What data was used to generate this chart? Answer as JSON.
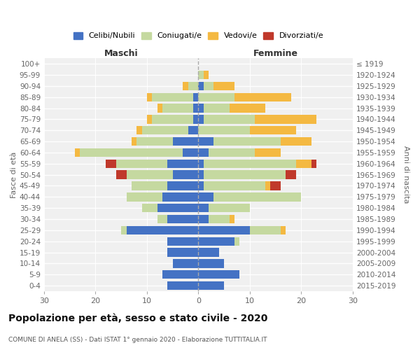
{
  "age_groups": [
    "0-4",
    "5-9",
    "10-14",
    "15-19",
    "20-24",
    "25-29",
    "30-34",
    "35-39",
    "40-44",
    "45-49",
    "50-54",
    "55-59",
    "60-64",
    "65-69",
    "70-74",
    "75-79",
    "80-84",
    "85-89",
    "90-94",
    "95-99",
    "100+"
  ],
  "birth_years": [
    "2015-2019",
    "2010-2014",
    "2005-2009",
    "2000-2004",
    "1995-1999",
    "1990-1994",
    "1985-1989",
    "1980-1984",
    "1975-1979",
    "1970-1974",
    "1965-1969",
    "1960-1964",
    "1955-1959",
    "1950-1954",
    "1945-1949",
    "1940-1944",
    "1935-1939",
    "1930-1934",
    "1925-1929",
    "1920-1924",
    "≤ 1919"
  ],
  "colors": {
    "celibe": "#4472C4",
    "coniugato": "#C5D9A0",
    "vedovo": "#F4B942",
    "divorziato": "#C0392B"
  },
  "male": {
    "celibe": [
      6,
      7,
      5,
      6,
      6,
      14,
      6,
      8,
      7,
      6,
      5,
      6,
      3,
      5,
      2,
      1,
      1,
      1,
      0,
      0,
      0
    ],
    "coniugato": [
      0,
      0,
      0,
      0,
      0,
      1,
      2,
      3,
      7,
      7,
      9,
      10,
      20,
      7,
      9,
      8,
      6,
      8,
      2,
      0,
      0
    ],
    "vedovo": [
      0,
      0,
      0,
      0,
      0,
      0,
      0,
      0,
      0,
      0,
      0,
      0,
      1,
      1,
      1,
      1,
      1,
      1,
      1,
      0,
      0
    ],
    "divorziato": [
      0,
      0,
      0,
      0,
      0,
      0,
      0,
      0,
      0,
      0,
      2,
      2,
      0,
      0,
      0,
      0,
      0,
      0,
      0,
      0,
      0
    ]
  },
  "female": {
    "celibe": [
      5,
      8,
      5,
      4,
      7,
      10,
      2,
      2,
      3,
      1,
      1,
      1,
      2,
      3,
      0,
      1,
      1,
      0,
      1,
      0,
      0
    ],
    "coniugato": [
      0,
      0,
      0,
      0,
      1,
      6,
      4,
      8,
      17,
      12,
      16,
      18,
      9,
      13,
      10,
      10,
      5,
      7,
      2,
      1,
      0
    ],
    "vedovo": [
      0,
      0,
      0,
      0,
      0,
      1,
      1,
      0,
      0,
      1,
      0,
      3,
      5,
      6,
      9,
      12,
      7,
      11,
      4,
      1,
      0
    ],
    "divorziato": [
      0,
      0,
      0,
      0,
      0,
      0,
      0,
      0,
      0,
      2,
      2,
      1,
      0,
      0,
      0,
      0,
      0,
      0,
      0,
      0,
      0
    ]
  },
  "xlim": 30,
  "title": "Popolazione per età, sesso e stato civile - 2020",
  "subtitle": "COMUNE DI ANELA (SS) - Dati ISTAT 1° gennaio 2020 - Elaborazione TUTTITALIA.IT",
  "ylabel_left": "Fasce di età",
  "ylabel_right": "Anni di nascita",
  "xlabel_left": "Maschi",
  "xlabel_right": "Femmine",
  "legend_labels": [
    "Celibi/Nubili",
    "Coniugati/e",
    "Vedovi/e",
    "Divorziati/e"
  ],
  "bg_color": "#ffffff",
  "grid_color": "#cccccc",
  "ax_bg_color": "#f0f0f0"
}
